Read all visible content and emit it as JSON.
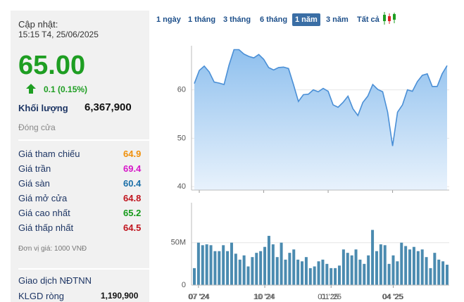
{
  "header": {
    "update_label": "Cập nhật:",
    "timestamp": "15:15 T4, 25/06/2025"
  },
  "quote": {
    "price": "65.00",
    "change": "0.1 (0.15%)",
    "volume_label": "Khối lượng",
    "volume": "6,367,900",
    "status": "Đóng cửa"
  },
  "stats": [
    {
      "label": "Giá tham chiếu",
      "value": 64.9,
      "color": "#f0900a"
    },
    {
      "label": "Giá trần",
      "value": 69.4,
      "color": "#d616c8"
    },
    {
      "label": "Giá sàn",
      "value": 60.4,
      "color": "#1a6fa8"
    },
    {
      "label": "Giá mở cửa",
      "value": 64.8,
      "color": "#c0141e"
    },
    {
      "label": "Giá cao nhất",
      "value": 65.2,
      "color": "#159a1a"
    },
    {
      "label": "Giá thấp nhất",
      "value": 64.5,
      "color": "#c0141e"
    }
  ],
  "unit_note": "Đơn vị giá: 1000 VNĐ",
  "foreign": {
    "title": "Giao dịch NĐTNN",
    "net_label": "KLGD ròng",
    "net_value": "1,190,900"
  },
  "range_tabs": {
    "items": [
      "1 ngày",
      "1 tháng",
      "3 tháng",
      "6 tháng",
      "1 năm",
      "3 năm",
      "Tất cả"
    ],
    "selected": 4
  },
  "chart_data": [
    {
      "type": "area",
      "color": "#4a8fd6",
      "values": [
        61.3,
        64.0,
        64.9,
        63.7,
        61.6,
        61.4,
        61.1,
        65.1,
        68.3,
        68.3,
        67.4,
        66.9,
        66.6,
        67.3,
        66.3,
        64.6,
        64.1,
        64.6,
        64.7,
        64.4,
        61.1,
        57.6,
        59.0,
        59.1,
        60.0,
        59.6,
        60.3,
        59.7,
        56.9,
        56.4,
        57.4,
        58.7,
        56.1,
        54.7,
        57.4,
        58.7,
        61.1,
        60.1,
        59.6,
        55.4,
        48.4,
        55.4,
        56.9,
        60.0,
        59.7,
        61.7,
        63.0,
        63.3,
        60.7,
        60.7,
        63.3,
        65.0
      ],
      "xlim": [
        0,
        51
      ],
      "xticks": [
        {
          "value": 1,
          "label": "07 '24"
        },
        {
          "value": 14,
          "label": "10 '24"
        },
        {
          "value": 27,
          "label": "01 '25"
        },
        {
          "value": 40,
          "label": "04 '25"
        }
      ],
      "ylim": [
        39.3,
        69.1
      ],
      "yticks": [
        40,
        50,
        60
      ],
      "grid": true
    },
    {
      "type": "bar",
      "color": "#4b8bb0",
      "values": [
        20,
        50,
        47,
        48,
        47,
        40,
        40,
        47,
        40,
        50,
        37,
        30,
        35,
        22,
        33,
        38,
        40,
        45,
        58,
        48,
        33,
        50,
        30,
        38,
        42,
        30,
        28,
        33,
        20,
        22,
        28,
        30,
        25,
        20,
        20,
        23,
        42,
        38,
        35,
        42,
        30,
        25,
        35,
        65,
        40,
        48,
        47,
        25,
        35,
        28,
        50,
        46,
        42,
        45,
        40,
        42,
        33,
        20,
        38,
        30,
        28,
        24
      ],
      "xlim": [
        0,
        61
      ],
      "xticks": [
        {
          "value": 1,
          "label": "07 '24"
        },
        {
          "value": 17,
          "label": "10 '24"
        },
        {
          "value": 33,
          "label": "01 '25"
        },
        {
          "value": 48,
          "label": "04 '25"
        }
      ],
      "ylim": [
        0,
        97
      ],
      "yticks": [
        0,
        {
          "value": 50,
          "label": "50M"
        }
      ],
      "grid": true
    }
  ]
}
